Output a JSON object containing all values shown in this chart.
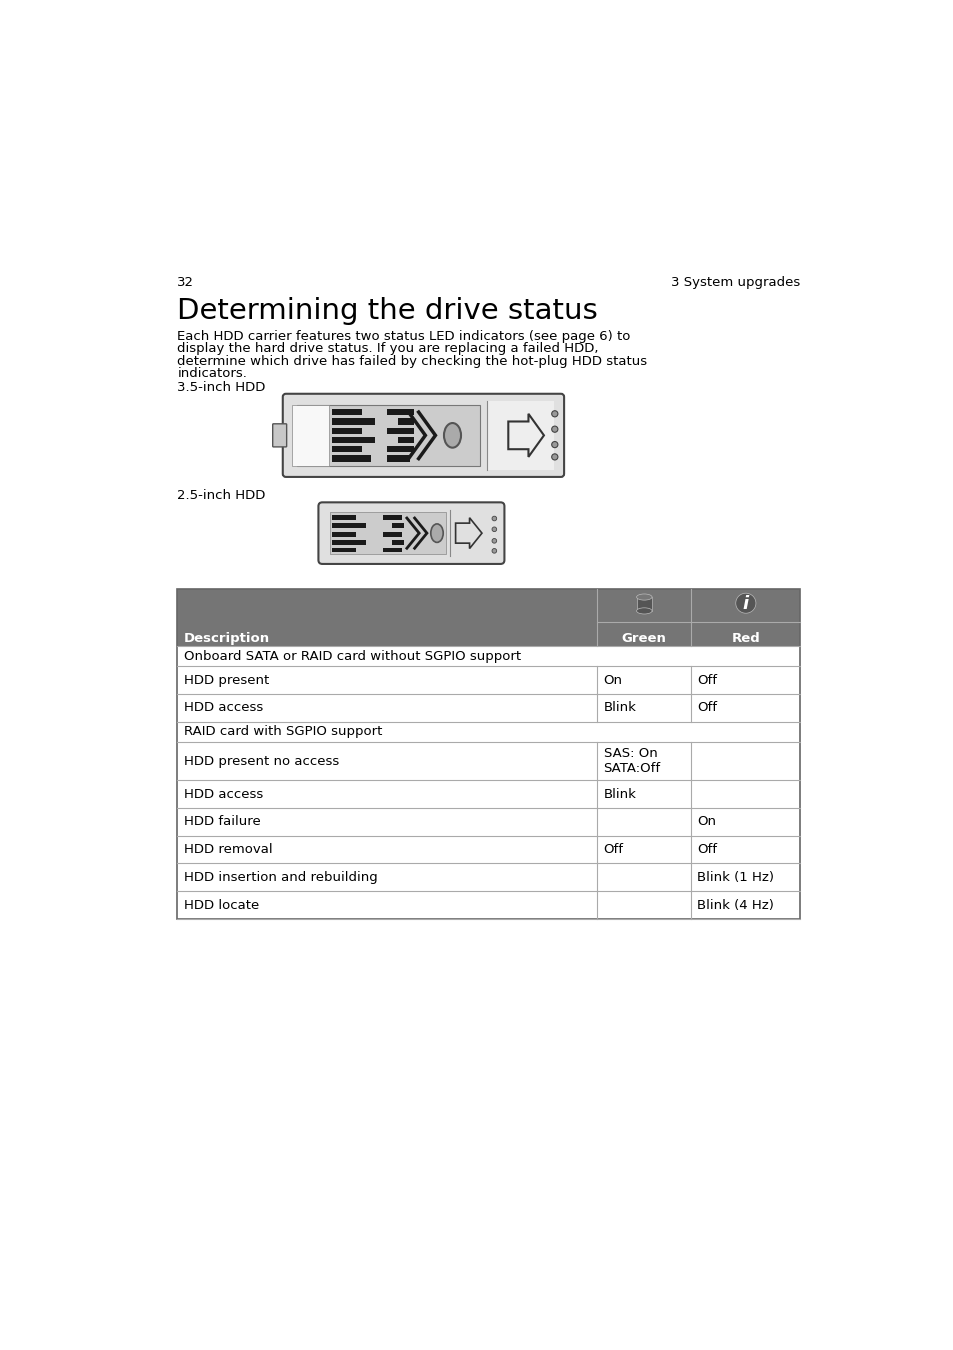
{
  "page_num": "32",
  "page_header_right": "3 System upgrades",
  "title": "Determining the drive status",
  "body_text_lines": [
    "Each HDD carrier features two status LED indicators (see page 6) to",
    "display the hard drive status. If you are replacing a failed HDD,",
    "determine which drive has failed by checking the hot-plug HDD status",
    "indicators."
  ],
  "label_35": "3.5-inch HDD",
  "label_25": "2.5-inch HDD",
  "table_header_bg": "#757575",
  "table_border_color": "#aaaaaa",
  "col_desc": "Description",
  "col_green": "Green",
  "col_red": "Red",
  "rows": [
    {
      "section": "Onboard SATA or RAID card without SGPIO support",
      "desc": "",
      "green": "",
      "red": ""
    },
    {
      "section": "",
      "desc": "HDD present",
      "green": "On",
      "red": "Off"
    },
    {
      "section": "",
      "desc": "HDD access",
      "green": "Blink",
      "red": "Off"
    },
    {
      "section": "RAID card with SGPIO support",
      "desc": "",
      "green": "",
      "red": ""
    },
    {
      "section": "",
      "desc": "HDD present no access",
      "green": "SAS: On\nSATA:Off",
      "red": ""
    },
    {
      "section": "",
      "desc": "HDD access",
      "green": "Blink",
      "red": ""
    },
    {
      "section": "",
      "desc": "HDD failure",
      "green": "",
      "red": "On"
    },
    {
      "section": "",
      "desc": "HDD removal",
      "green": "Off",
      "red": "Off"
    },
    {
      "section": "",
      "desc": "HDD insertion and rebuilding",
      "green": "",
      "red": "Blink (1 Hz)"
    },
    {
      "section": "",
      "desc": "HDD locate",
      "green": "",
      "red": "Blink (4 Hz)"
    }
  ],
  "background_color": "#ffffff"
}
